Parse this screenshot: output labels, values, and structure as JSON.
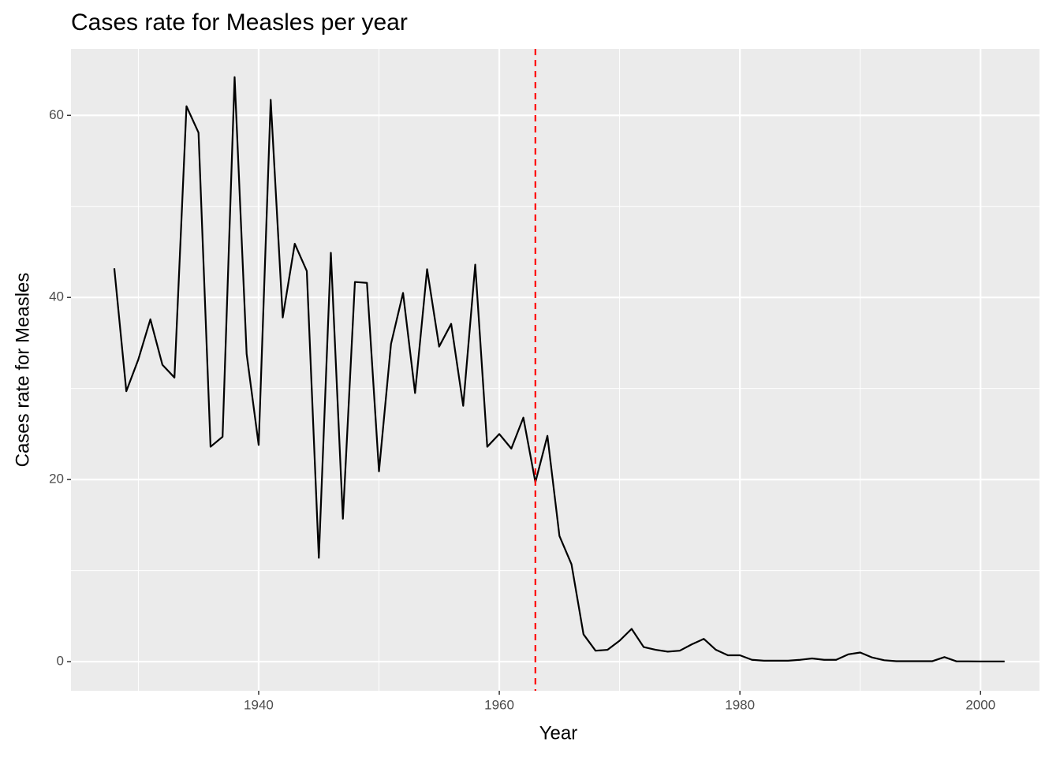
{
  "chart_data": {
    "type": "line",
    "title": "Cases rate for Measles per year",
    "x_label": "Year",
    "y_label": "Cases rate for Measles",
    "x": [
      1928,
      1929,
      1930,
      1931,
      1932,
      1933,
      1934,
      1935,
      1936,
      1937,
      1938,
      1939,
      1940,
      1941,
      1942,
      1943,
      1944,
      1945,
      1946,
      1947,
      1948,
      1949,
      1950,
      1951,
      1952,
      1953,
      1954,
      1955,
      1956,
      1957,
      1958,
      1959,
      1960,
      1961,
      1962,
      1963,
      1964,
      1965,
      1966,
      1967,
      1968,
      1969,
      1970,
      1971,
      1972,
      1973,
      1974,
      1975,
      1976,
      1977,
      1978,
      1979,
      1980,
      1981,
      1982,
      1983,
      1984,
      1985,
      1986,
      1987,
      1988,
      1989,
      1990,
      1991,
      1992,
      1993,
      1994,
      1995,
      1996,
      1997,
      1998,
      1999,
      2000,
      2001,
      2002
    ],
    "series": [
      {
        "name": "Measles",
        "color": "#000000",
        "values": [
          43.2,
          29.7,
          33.2,
          37.6,
          32.6,
          31.2,
          61.0,
          58.1,
          23.6,
          24.7,
          64.2,
          33.8,
          23.8,
          61.7,
          37.8,
          45.9,
          42.9,
          11.4,
          44.9,
          15.7,
          41.7,
          41.6,
          20.9,
          34.9,
          40.5,
          29.5,
          43.1,
          34.6,
          37.1,
          28.1,
          43.6,
          23.6,
          25.0,
          23.4,
          26.8,
          19.7,
          24.8,
          13.8,
          10.7,
          3.0,
          1.2,
          1.3,
          2.3,
          3.6,
          1.6,
          1.3,
          1.1,
          1.2,
          1.9,
          2.5,
          1.3,
          0.7,
          0.7,
          0.2,
          0.1,
          0.1,
          0.1,
          0.2,
          0.35,
          0.2,
          0.2,
          0.8,
          1.0,
          0.45,
          0.15,
          0.05,
          0.05,
          0.05,
          0.05,
          0.5,
          0.03,
          0.03,
          0.02,
          0.02,
          0.02
        ]
      }
    ],
    "vline": {
      "x": 1963,
      "color": "#ff0000"
    },
    "xlim": [
      1924.4,
      2004.9
    ],
    "ylim": [
      -3.2,
      67.3
    ],
    "xticks": [
      1940,
      1960,
      1980,
      2000
    ],
    "yticks": [
      0,
      20,
      40,
      60
    ],
    "xminor": [
      1930,
      1950,
      1970,
      1990
    ],
    "yminor": [
      10,
      30,
      50
    ],
    "grid": true
  }
}
